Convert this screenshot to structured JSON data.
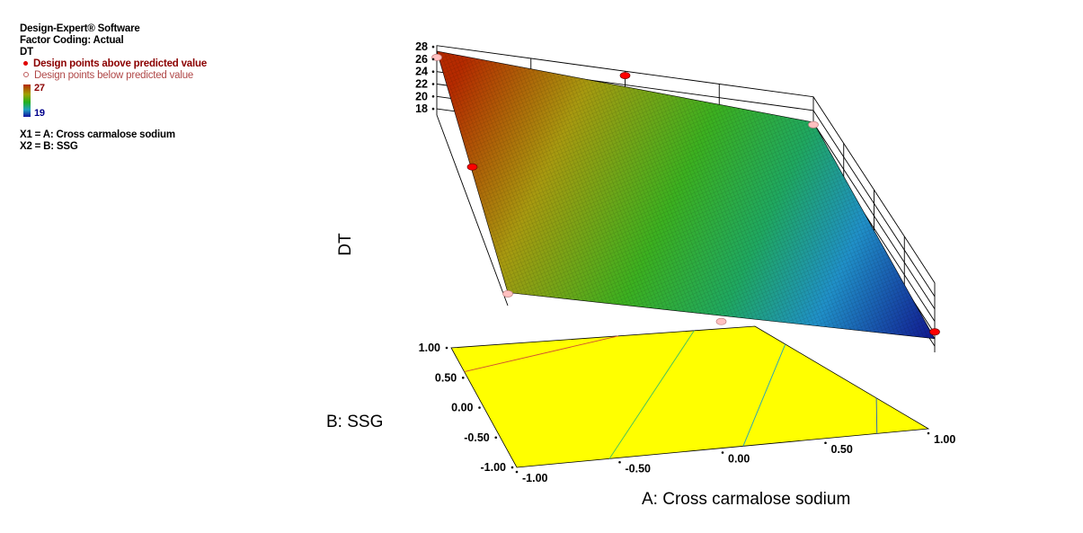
{
  "legend": {
    "software": "Design-Expert® Software",
    "coding": "Factor Coding: Actual",
    "response": "DT",
    "above_label": "Design points above predicted value",
    "below_label": "Design points below predicted value",
    "colorbar_max": "27",
    "colorbar_min": "19",
    "x1_def": "X1 = A: Cross carmalose sodium",
    "x2_def": "X2 = B: SSG"
  },
  "chart_data": {
    "type": "surface",
    "zlabel": "DT",
    "xlabel": "A: Cross carmalose sodium",
    "ylabel": "B: SSG",
    "z_ticks": [
      "18",
      "20",
      "22",
      "24",
      "26",
      "28"
    ],
    "x_ticks": [
      "-1.00",
      "-0.50",
      "0.00",
      "0.50",
      "1.00"
    ],
    "y_ticks": [
      "-1.00",
      "-0.50",
      "0.00",
      "0.50",
      "1.00"
    ],
    "zlim": [
      17,
      28
    ],
    "xlim": [
      -1,
      1
    ],
    "ylim": [
      -1,
      1
    ],
    "surface_corners": [
      {
        "A": -1,
        "B": 1,
        "DT": 27.3
      },
      {
        "A": 1,
        "B": 1,
        "DT": 24.1
      },
      {
        "A": 1,
        "B": -1,
        "DT": 19.2
      },
      {
        "A": -1,
        "B": -1,
        "DT": 19.1
      }
    ],
    "design_points": [
      {
        "A": -1,
        "B": 1,
        "DT": 26.3,
        "position": "below"
      },
      {
        "A": 0,
        "B": 1,
        "DT": 27.5,
        "position": "above"
      },
      {
        "A": 1,
        "B": 1,
        "DT": 23.7,
        "position": "below"
      },
      {
        "A": -1,
        "B": 0,
        "DT": 24.0,
        "position": "above"
      },
      {
        "A": 1,
        "B": -1,
        "DT": 20.3,
        "position": "above"
      },
      {
        "A": -1,
        "B": -1,
        "DT": 18.9,
        "position": "below"
      },
      {
        "A": 0,
        "B": -1,
        "DT": 18.2,
        "position": "below"
      }
    ],
    "colors": {
      "floor": "#ffff00",
      "high": "#b52a00",
      "mid": "#20b020",
      "low": "#10108c",
      "above_point": "#ff0000",
      "below_point": "#ffc0c0"
    }
  }
}
